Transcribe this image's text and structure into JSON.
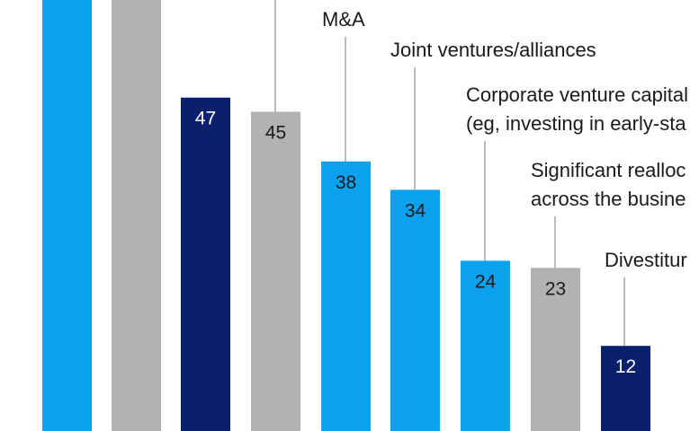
{
  "chart_data": {
    "type": "bar",
    "categories": [
      "",
      "",
      "",
      "",
      "M&A",
      "Joint ventures/alliances",
      "Corporate venture capital (eg, investing in early-stage companies)",
      "Significant reallocation across the business",
      "",
      "Divestitures"
    ],
    "category_lines": [
      [],
      [],
      [],
      [],
      [
        "M&A"
      ],
      [
        "Joint ventures/alliances"
      ],
      [
        "Corporate venture capital",
        "(eg, investing in early-sta"
      ],
      [
        "Significant realloc",
        "across the busine"
      ],
      [],
      [
        "Divestitur"
      ]
    ],
    "values": [
      null,
      null,
      47,
      45,
      38,
      34,
      24,
      23,
      null,
      12
    ],
    "value_labels": [
      "",
      "",
      "47",
      "45",
      "38",
      "34",
      "24",
      "23",
      "",
      "12"
    ],
    "bar_colors": [
      "#0aa2ee",
      "#b2b2b2",
      "#0a1f6e",
      "#b2b2b2",
      "#0aa2ee",
      "#0aa2ee",
      "#0aa2ee",
      "#b2b2b2",
      "",
      "#0a1f6e"
    ],
    "ylim": [
      0,
      60
    ],
    "grid": false,
    "colors": {
      "light_blue": "#0aa2ee",
      "gray": "#b2b2b2",
      "navy": "#0a1f6e",
      "leader": "#7a7a7a",
      "text_dark": "#1a1a1a",
      "text_light": "#ffffff"
    }
  }
}
